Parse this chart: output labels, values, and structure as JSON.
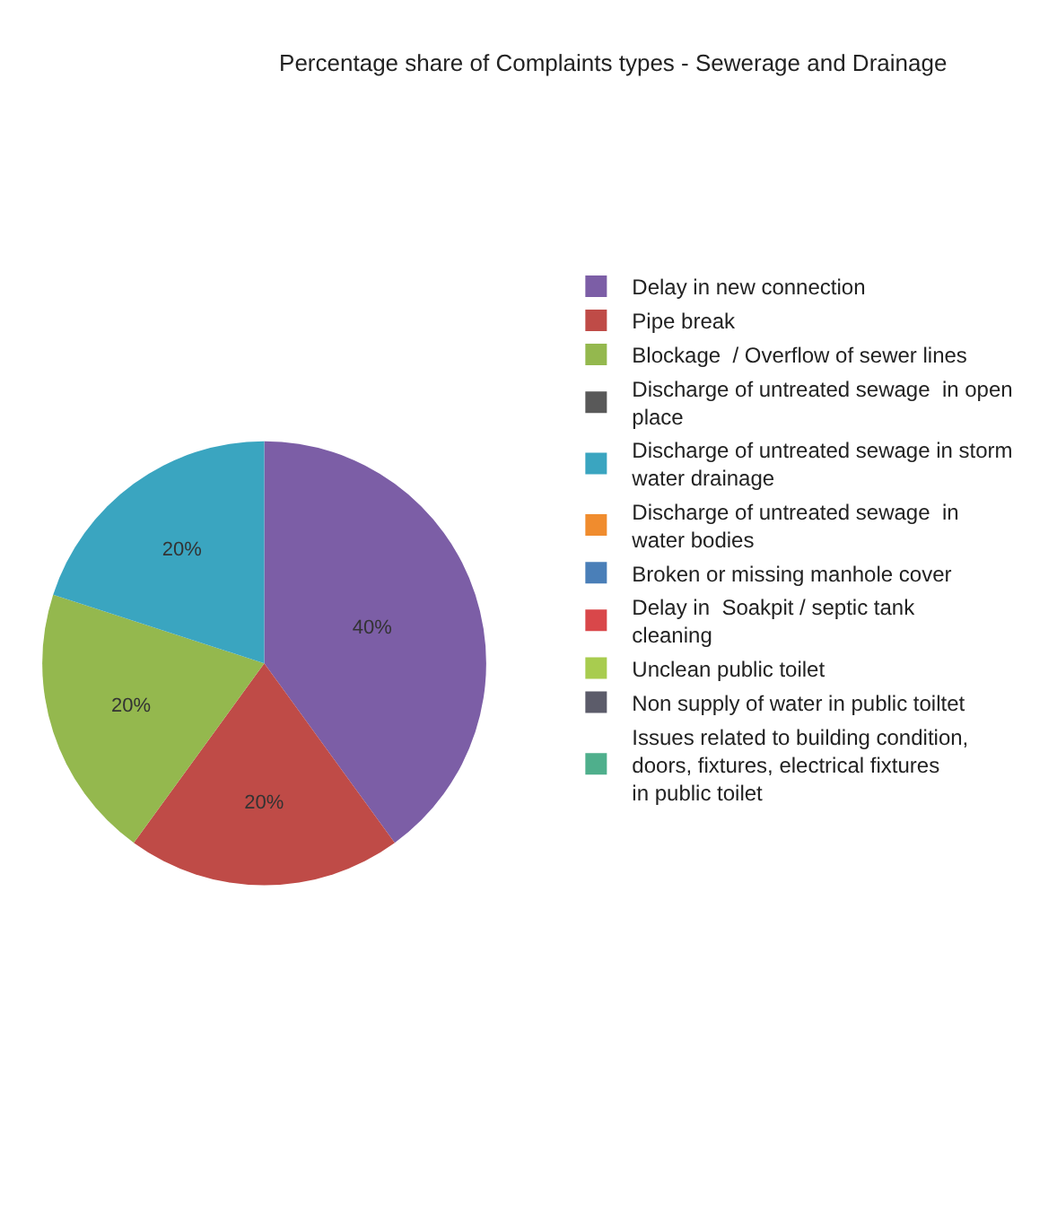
{
  "chart_data": {
    "type": "pie",
    "title": "Percentage share of Complaints types - Sewerage and Drainage",
    "categories": [
      "Delay in new connection",
      "Pipe break",
      "Blockage  / Overflow of sewer lines",
      "Discharge of untreated sewage  in open place",
      "Discharge of untreated sewage in storm water drainage",
      "Discharge of untreated sewage  in water bodies",
      "Broken or missing manhole cover",
      "Delay in  Soakpit / septic tank cleaning",
      "Unclean public toilet",
      "Non supply of water in public toiltet",
      "Issues related to building condition, doors, fixtures, electrical fixtures in public toilet"
    ],
    "values": [
      40,
      20,
      20,
      0,
      20,
      0,
      0,
      0,
      0,
      0,
      0
    ],
    "value_labels": [
      "40%",
      "20%",
      "20%",
      null,
      "20%",
      null,
      null,
      null,
      null,
      null,
      null
    ],
    "colors": [
      "#7c5ea6",
      "#bf4b47",
      "#94b84e",
      "#595959",
      "#3aa5c0",
      "#f08c2e",
      "#4a7fb8",
      "#d9474a",
      "#a8cc4f",
      "#5c5c6a",
      "#4faf8c"
    ],
    "legend": "right"
  }
}
